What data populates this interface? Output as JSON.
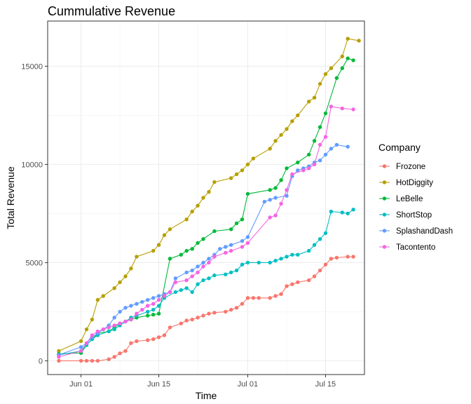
{
  "chart_data": {
    "type": "line",
    "title": "Cummulative Revenue",
    "xlabel": "Time",
    "ylabel": "Total Revenue",
    "x_domain": [
      "2021-05-26",
      "2021-07-22"
    ],
    "ylim": [
      -700,
      17300
    ],
    "x_ticks": [
      {
        "date": "2021-06-01",
        "label": "Jun 01"
      },
      {
        "date": "2021-06-15",
        "label": "Jun 15"
      },
      {
        "date": "2021-07-01",
        "label": "Jul 01"
      },
      {
        "date": "2021-07-15",
        "label": "Jul 15"
      }
    ],
    "x_minor_ticks": [
      "2021-05-25",
      "2021-06-08",
      "2021-06-22",
      "2021-07-08",
      "2021-07-22"
    ],
    "y_ticks": [
      0,
      5000,
      10000,
      15000
    ],
    "y_minor_ticks": [
      2500,
      7500,
      12500
    ],
    "grid": true,
    "legend": {
      "title": "Company",
      "position": "right"
    },
    "series": [
      {
        "name": "Frozone",
        "color": "#F8766D",
        "x": [
          "2021-05-28",
          "2021-06-01",
          "2021-06-02",
          "2021-06-03",
          "2021-06-04",
          "2021-06-06",
          "2021-06-07",
          "2021-06-08",
          "2021-06-09",
          "2021-06-10",
          "2021-06-11",
          "2021-06-13",
          "2021-06-14",
          "2021-06-15",
          "2021-06-16",
          "2021-06-17",
          "2021-06-19",
          "2021-06-20",
          "2021-06-21",
          "2021-06-22",
          "2021-06-23",
          "2021-06-24",
          "2021-06-25",
          "2021-06-27",
          "2021-06-28",
          "2021-06-29",
          "2021-06-30",
          "2021-07-01",
          "2021-07-02",
          "2021-07-03",
          "2021-07-05",
          "2021-07-06",
          "2021-07-07",
          "2021-07-08",
          "2021-07-09",
          "2021-07-10",
          "2021-07-12",
          "2021-07-13",
          "2021-07-14",
          "2021-07-15",
          "2021-07-16",
          "2021-07-17",
          "2021-07-19",
          "2021-07-20"
        ],
        "y": [
          0,
          0,
          0,
          0,
          0,
          80,
          200,
          380,
          500,
          900,
          1000,
          1050,
          1100,
          1200,
          1300,
          1700,
          1900,
          2050,
          2100,
          2200,
          2300,
          2400,
          2450,
          2500,
          2600,
          2700,
          2900,
          3200,
          3200,
          3200,
          3200,
          3300,
          3400,
          3800,
          3900,
          4000,
          4100,
          4300,
          4600,
          4900,
          5200,
          5250,
          5300,
          5300
        ]
      },
      {
        "name": "HotDiggity",
        "color": "#B79F00",
        "x": [
          "2021-05-28",
          "2021-06-01",
          "2021-06-02",
          "2021-06-03",
          "2021-06-04",
          "2021-06-05",
          "2021-06-07",
          "2021-06-08",
          "2021-06-09",
          "2021-06-10",
          "2021-06-11",
          "2021-06-14",
          "2021-06-15",
          "2021-06-16",
          "2021-06-17",
          "2021-06-20",
          "2021-06-21",
          "2021-06-22",
          "2021-06-23",
          "2021-06-24",
          "2021-06-25",
          "2021-06-28",
          "2021-06-29",
          "2021-06-30",
          "2021-07-01",
          "2021-07-02",
          "2021-07-05",
          "2021-07-06",
          "2021-07-07",
          "2021-07-08",
          "2021-07-09",
          "2021-07-10",
          "2021-07-12",
          "2021-07-13",
          "2021-07-14",
          "2021-07-15",
          "2021-07-16",
          "2021-07-18",
          "2021-07-19",
          "2021-07-21"
        ],
        "y": [
          500,
          1000,
          1600,
          2100,
          3100,
          3300,
          3700,
          4000,
          4300,
          4700,
          5300,
          5600,
          5900,
          6400,
          6700,
          7200,
          7600,
          7900,
          8300,
          8600,
          9100,
          9300,
          9500,
          9700,
          10000,
          10300,
          10800,
          11200,
          11500,
          11800,
          12200,
          12500,
          13200,
          13400,
          14100,
          14600,
          14900,
          15500,
          16400,
          16300
        ]
      },
      {
        "name": "LeBelle",
        "color": "#00BA38",
        "x": [
          "2021-05-28",
          "2021-06-01",
          "2021-06-02",
          "2021-06-03",
          "2021-06-04",
          "2021-06-06",
          "2021-06-07",
          "2021-06-08",
          "2021-06-09",
          "2021-06-10",
          "2021-06-11",
          "2021-06-13",
          "2021-06-14",
          "2021-06-15",
          "2021-06-17",
          "2021-06-19",
          "2021-06-20",
          "2021-06-21",
          "2021-06-22",
          "2021-06-23",
          "2021-06-25",
          "2021-06-28",
          "2021-06-29",
          "2021-06-30",
          "2021-07-01",
          "2021-07-05",
          "2021-07-06",
          "2021-07-07",
          "2021-07-08",
          "2021-07-10",
          "2021-07-12",
          "2021-07-13",
          "2021-07-14",
          "2021-07-15",
          "2021-07-17",
          "2021-07-18",
          "2021-07-19",
          "2021-07-20"
        ],
        "y": [
          350,
          400,
          800,
          1100,
          1400,
          1500,
          1700,
          1900,
          2000,
          2100,
          2200,
          2300,
          2350,
          2400,
          5200,
          5400,
          5600,
          5700,
          6000,
          6200,
          6600,
          6700,
          7000,
          7200,
          8500,
          8700,
          8800,
          9200,
          9800,
          10100,
          10500,
          11200,
          11900,
          12600,
          14400,
          14900,
          15400,
          15300
        ]
      },
      {
        "name": "ShortStop",
        "color": "#00BFC4",
        "x": [
          "2021-05-28",
          "2021-06-01",
          "2021-06-02",
          "2021-06-03",
          "2021-06-04",
          "2021-06-06",
          "2021-06-07",
          "2021-06-08",
          "2021-06-09",
          "2021-06-10",
          "2021-06-11",
          "2021-06-13",
          "2021-06-14",
          "2021-06-15",
          "2021-06-16",
          "2021-06-18",
          "2021-06-19",
          "2021-06-20",
          "2021-06-21",
          "2021-06-22",
          "2021-06-23",
          "2021-06-24",
          "2021-06-25",
          "2021-06-27",
          "2021-06-28",
          "2021-06-29",
          "2021-06-30",
          "2021-07-01",
          "2021-07-03",
          "2021-07-05",
          "2021-07-06",
          "2021-07-07",
          "2021-07-08",
          "2021-07-09",
          "2021-07-10",
          "2021-07-12",
          "2021-07-13",
          "2021-07-14",
          "2021-07-15",
          "2021-07-16",
          "2021-07-18",
          "2021-07-19",
          "2021-07-20"
        ],
        "y": [
          300,
          500,
          800,
          1100,
          1300,
          1500,
          1600,
          1800,
          2000,
          2200,
          2300,
          2500,
          2600,
          2800,
          3200,
          3500,
          3600,
          3700,
          3500,
          3900,
          4100,
          4200,
          4350,
          4400,
          4500,
          4600,
          4900,
          5000,
          5000,
          5000,
          5100,
          5200,
          5300,
          5400,
          5400,
          5600,
          5900,
          6200,
          6500,
          7600,
          7550,
          7500,
          7700
        ]
      },
      {
        "name": "SplashandDash",
        "color": "#619CFF",
        "x": [
          "2021-05-28",
          "2021-06-01",
          "2021-06-02",
          "2021-06-03",
          "2021-06-04",
          "2021-06-05",
          "2021-06-06",
          "2021-06-07",
          "2021-06-08",
          "2021-06-09",
          "2021-06-10",
          "2021-06-11",
          "2021-06-12",
          "2021-06-13",
          "2021-06-14",
          "2021-06-15",
          "2021-06-16",
          "2021-06-17",
          "2021-06-18",
          "2021-06-20",
          "2021-06-21",
          "2021-06-22",
          "2021-06-23",
          "2021-06-24",
          "2021-06-25",
          "2021-06-26",
          "2021-06-27",
          "2021-06-28",
          "2021-06-30",
          "2021-07-01",
          "2021-07-04",
          "2021-07-05",
          "2021-07-06",
          "2021-07-08",
          "2021-07-09",
          "2021-07-10",
          "2021-07-11",
          "2021-07-12",
          "2021-07-13",
          "2021-07-14",
          "2021-07-15",
          "2021-07-16",
          "2021-07-17",
          "2021-07-19"
        ],
        "y": [
          300,
          700,
          900,
          1200,
          1400,
          1600,
          1800,
          2200,
          2500,
          2700,
          2800,
          2900,
          3000,
          3100,
          3200,
          3300,
          3400,
          3500,
          4200,
          4500,
          4600,
          4800,
          5000,
          5200,
          5400,
          5700,
          5800,
          5900,
          6100,
          6300,
          8100,
          8200,
          8300,
          8400,
          9400,
          9700,
          9800,
          9900,
          10100,
          10200,
          10500,
          10800,
          11000,
          10900
        ]
      },
      {
        "name": "Tacontento",
        "color": "#F564E3",
        "x": [
          "2021-05-28",
          "2021-06-01",
          "2021-06-02",
          "2021-06-03",
          "2021-06-04",
          "2021-06-05",
          "2021-06-06",
          "2021-06-07",
          "2021-06-08",
          "2021-06-09",
          "2021-06-10",
          "2021-06-11",
          "2021-06-12",
          "2021-06-13",
          "2021-06-14",
          "2021-06-15",
          "2021-06-16",
          "2021-06-17",
          "2021-06-18",
          "2021-06-20",
          "2021-06-21",
          "2021-06-22",
          "2021-06-23",
          "2021-06-24",
          "2021-06-25",
          "2021-06-27",
          "2021-06-28",
          "2021-06-30",
          "2021-07-01",
          "2021-07-05",
          "2021-07-06",
          "2021-07-07",
          "2021-07-08",
          "2021-07-09",
          "2021-07-11",
          "2021-07-12",
          "2021-07-13",
          "2021-07-14",
          "2021-07-15",
          "2021-07-16",
          "2021-07-18",
          "2021-07-20"
        ],
        "y": [
          200,
          500,
          900,
          1300,
          1500,
          1600,
          1700,
          1800,
          1900,
          2000,
          2100,
          2400,
          2600,
          2800,
          2900,
          3100,
          3300,
          3500,
          4000,
          4100,
          4300,
          4500,
          4800,
          5000,
          5300,
          5500,
          5600,
          5800,
          6000,
          7300,
          7400,
          8000,
          8700,
          9500,
          9700,
          9800,
          10000,
          11000,
          11400,
          12950,
          12850,
          12800
        ]
      }
    ]
  }
}
